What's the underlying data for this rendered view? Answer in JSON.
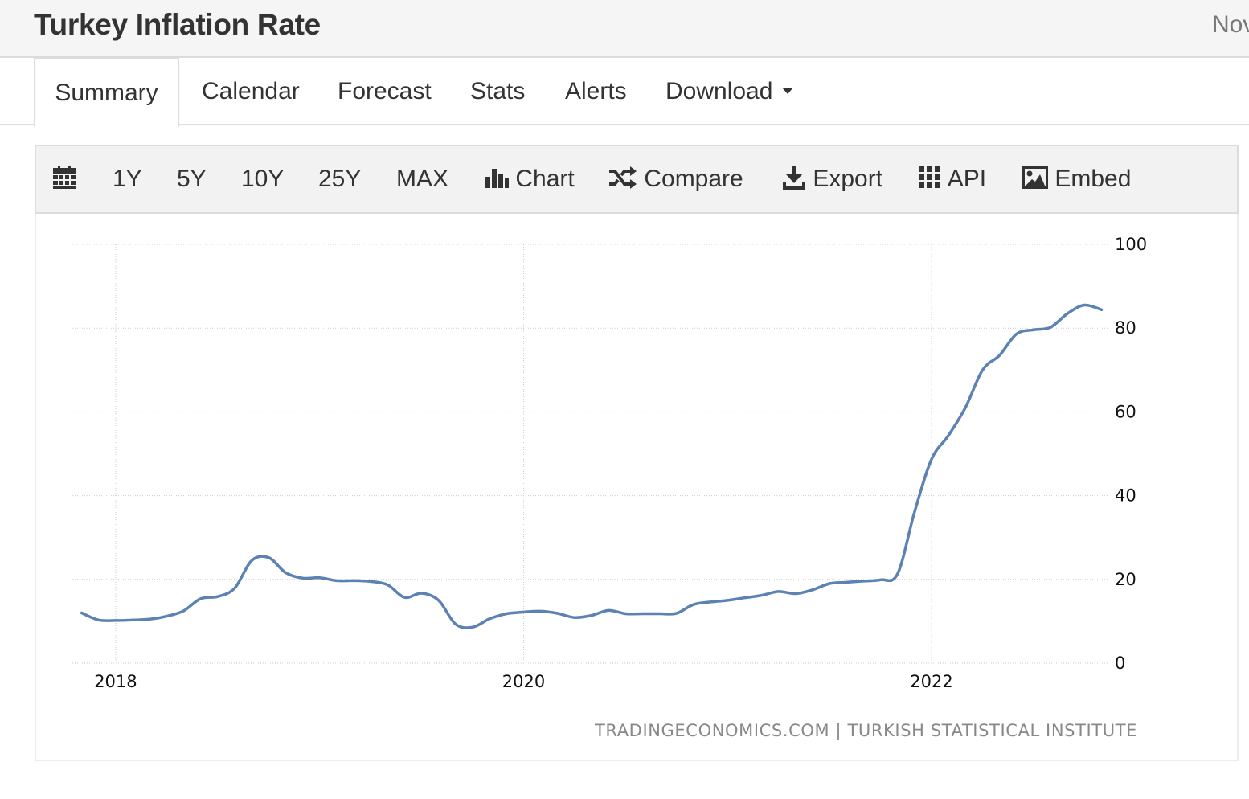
{
  "header": {
    "title": "Turkey Inflation Rate",
    "date_fragment": "Nov"
  },
  "tabs": [
    {
      "label": "Summary",
      "active": true
    },
    {
      "label": "Calendar"
    },
    {
      "label": "Forecast"
    },
    {
      "label": "Stats"
    },
    {
      "label": "Alerts"
    },
    {
      "label": "Download"
    }
  ],
  "toolbar": {
    "ranges": [
      "1Y",
      "5Y",
      "10Y",
      "25Y",
      "MAX"
    ],
    "chart_label": "Chart",
    "compare_label": "Compare",
    "export_label": "Export",
    "api_label": "API",
    "embed_label": "Embed"
  },
  "source_text": "TRADINGECONOMICS.COM | TURKISH STATISTICAL INSTITUTE",
  "colors": {
    "line": "#5b82b2",
    "grid": "#cccccc",
    "header_bg": "#f5f5f5"
  },
  "chart_data": {
    "type": "line",
    "title": "",
    "xlabel": "",
    "ylabel": "",
    "ylim": [
      0,
      100
    ],
    "yticks": [
      0,
      20,
      40,
      60,
      80,
      100
    ],
    "xlim": [
      "2017-11",
      "2022-11"
    ],
    "xticks": [
      "2018",
      "2020",
      "2022"
    ],
    "grid": true,
    "y_axis_side": "right",
    "series": [
      {
        "x": [
          "2017-11",
          "2017-12",
          "2018-01",
          "2018-02",
          "2018-03",
          "2018-04",
          "2018-05",
          "2018-06",
          "2018-07",
          "2018-08",
          "2018-09",
          "2018-10",
          "2018-11",
          "2018-12",
          "2019-01",
          "2019-02",
          "2019-03",
          "2019-04",
          "2019-05",
          "2019-06",
          "2019-07",
          "2019-08",
          "2019-09",
          "2019-10",
          "2019-11",
          "2019-12",
          "2020-01",
          "2020-02",
          "2020-03",
          "2020-04",
          "2020-05",
          "2020-06",
          "2020-07",
          "2020-08",
          "2020-09",
          "2020-10",
          "2020-11",
          "2020-12",
          "2021-01",
          "2021-02",
          "2021-03",
          "2021-04",
          "2021-05",
          "2021-06",
          "2021-07",
          "2021-08",
          "2021-09",
          "2021-10",
          "2021-11",
          "2021-12",
          "2022-01",
          "2022-02",
          "2022-03",
          "2022-04",
          "2022-05",
          "2022-06",
          "2022-07",
          "2022-08",
          "2022-09",
          "2022-10",
          "2022-11"
        ],
        "values": [
          12.0,
          10.3,
          10.2,
          10.3,
          10.5,
          11.2,
          12.5,
          15.4,
          15.9,
          17.9,
          24.5,
          25.2,
          21.6,
          20.3,
          20.4,
          19.7,
          19.7,
          19.5,
          18.7,
          15.7,
          16.7,
          15.0,
          9.3,
          8.6,
          10.6,
          11.8,
          12.2,
          12.4,
          11.9,
          10.9,
          11.4,
          12.6,
          11.8,
          11.8,
          11.8,
          11.9,
          14.0,
          14.6,
          15.0,
          15.6,
          16.2,
          17.1,
          16.6,
          17.5,
          19.0,
          19.3,
          19.6,
          19.9,
          21.3,
          36.1,
          48.7,
          54.4,
          61.1,
          70.0,
          73.5,
          78.6,
          79.6,
          80.2,
          83.5,
          85.5,
          84.4
        ]
      }
    ]
  }
}
